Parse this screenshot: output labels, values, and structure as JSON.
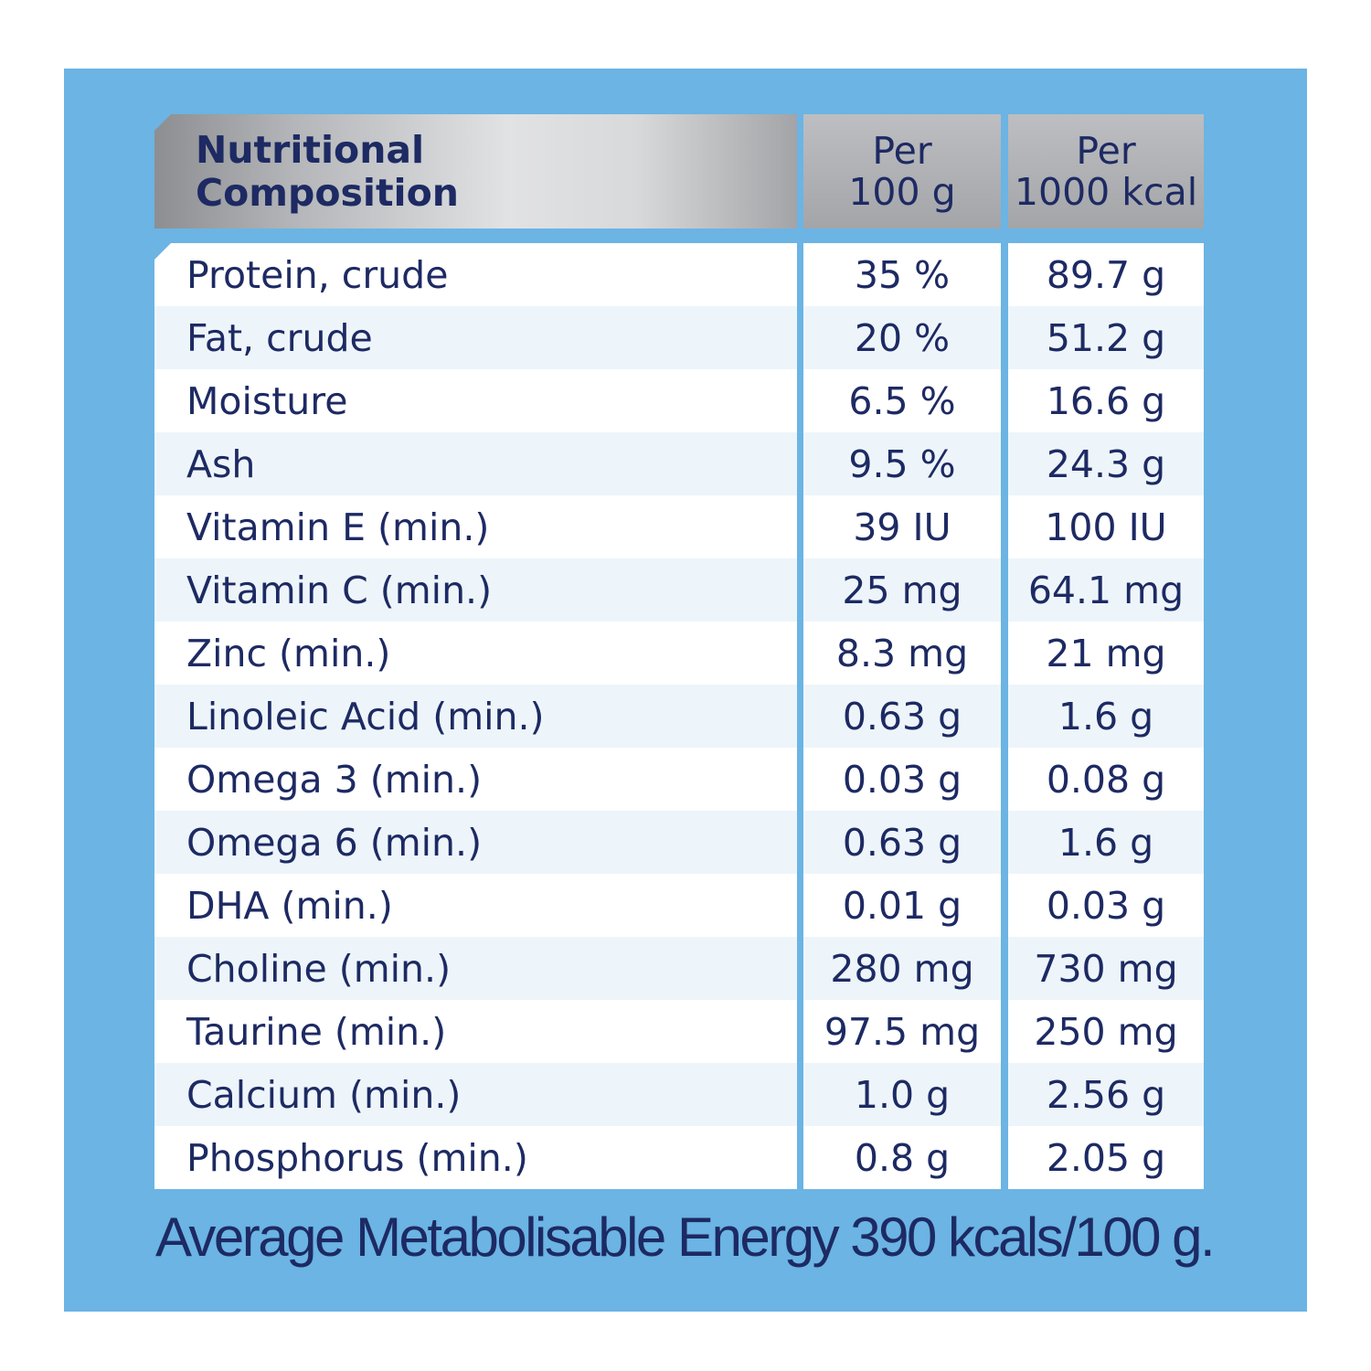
{
  "header": {
    "title_line1": "Nutritional",
    "title_line2": "Composition",
    "col1_line1": "Per",
    "col1_line2": "100 g",
    "col2_line1": "Per",
    "col2_line2": "1000 kcal"
  },
  "rows": [
    {
      "name": "Protein, crude",
      "per100g": "35 %",
      "per1000kcal": "89.7 g"
    },
    {
      "name": "Fat, crude",
      "per100g": "20 %",
      "per1000kcal": "51.2 g"
    },
    {
      "name": "Moisture",
      "per100g": "6.5 %",
      "per1000kcal": "16.6 g"
    },
    {
      "name": "Ash",
      "per100g": "9.5 %",
      "per1000kcal": "24.3 g"
    },
    {
      "name": "Vitamin E (min.)",
      "per100g": "39 IU",
      "per1000kcal": "100 IU"
    },
    {
      "name": "Vitamin C (min.)",
      "per100g": "25 mg",
      "per1000kcal": "64.1 mg"
    },
    {
      "name": "Zinc (min.)",
      "per100g": "8.3 mg",
      "per1000kcal": "21 mg"
    },
    {
      "name": "Linoleic Acid (min.)",
      "per100g": "0.63 g",
      "per1000kcal": "1.6 g"
    },
    {
      "name": "Omega 3 (min.)",
      "per100g": "0.03 g",
      "per1000kcal": "0.08 g"
    },
    {
      "name": "Omega 6 (min.)",
      "per100g": "0.63 g",
      "per1000kcal": "1.6 g"
    },
    {
      "name": "DHA (min.)",
      "per100g": "0.01 g",
      "per1000kcal": "0.03 g"
    },
    {
      "name": "Choline (min.)",
      "per100g": "280 mg",
      "per1000kcal": "730 mg"
    },
    {
      "name": "Taurine (min.)",
      "per100g": "97.5 mg",
      "per1000kcal": "250 mg"
    },
    {
      "name": "Calcium (min.)",
      "per100g": "1.0 g",
      "per1000kcal": "2.56 g"
    },
    {
      "name": "Phosphorus (min.)",
      "per100g": "0.8 g",
      "per1000kcal": "2.05 g"
    }
  ],
  "footer": "Average Metabolisable Energy 390 kcals/100 g."
}
